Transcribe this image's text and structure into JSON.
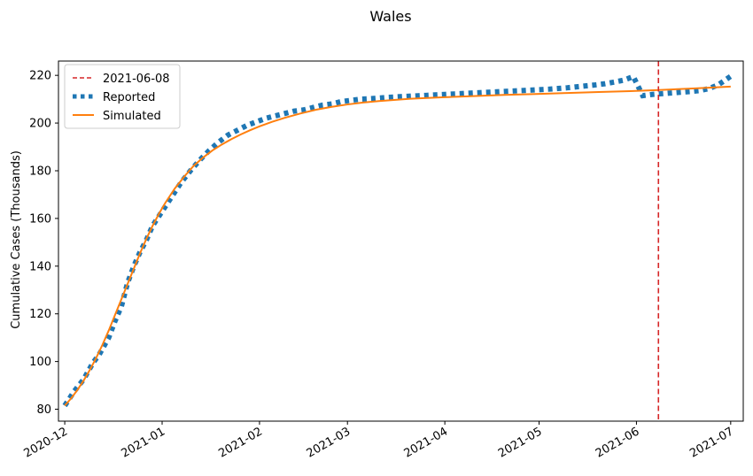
{
  "chart_data": {
    "type": "line",
    "title": "Wales",
    "xlabel": "",
    "ylabel": "Cumulative Cases (Thousands)",
    "ylim": [
      75,
      226
    ],
    "xlim_days": [
      -2,
      216
    ],
    "date_origin": "2020-12-01",
    "yticks": [
      80,
      100,
      120,
      140,
      160,
      180,
      200,
      220
    ],
    "xticks": [
      {
        "label": "2020-12",
        "day": 0
      },
      {
        "label": "2021-01",
        "day": 31
      },
      {
        "label": "2021-02",
        "day": 62
      },
      {
        "label": "2021-03",
        "day": 90
      },
      {
        "label": "2021-04",
        "day": 121
      },
      {
        "label": "2021-05",
        "day": 151
      },
      {
        "label": "2021-06",
        "day": 182
      },
      {
        "label": "2021-07",
        "day": 212
      }
    ],
    "vline": {
      "label": "2021-06-08",
      "day": 189,
      "color": "#d62728"
    },
    "series": [
      {
        "name": "Reported",
        "color": "#1f77b4",
        "style": "dotted",
        "x": [
          0,
          3,
          6,
          9,
          11,
          14,
          16,
          18,
          20,
          22,
          24,
          26,
          28,
          31,
          34,
          37,
          40,
          43,
          46,
          49,
          52,
          55,
          58,
          61,
          64,
          67,
          70,
          73,
          76,
          79,
          82,
          85,
          88,
          91,
          94,
          97,
          100,
          103,
          106,
          109,
          112,
          115,
          118,
          121,
          124,
          127,
          130,
          133,
          136,
          139,
          142,
          145,
          148,
          151,
          154,
          157,
          160,
          163,
          166,
          169,
          172,
          175,
          178,
          181,
          184,
          187,
          190,
          193,
          196,
          199,
          202,
          205,
          208,
          212
        ],
        "values": [
          81.5,
          87.5,
          92.5,
          99.5,
          103,
          110,
          117,
          123,
          133,
          140,
          146,
          151,
          157,
          163,
          169,
          175,
          180,
          184.5,
          188.5,
          192,
          195,
          197,
          199,
          200.5,
          202,
          203,
          204,
          205,
          205.5,
          206.5,
          207.5,
          208,
          209,
          209.5,
          210,
          210.2,
          210.5,
          210.8,
          211,
          211.2,
          211.4,
          211.6,
          211.8,
          212,
          212.2,
          212.4,
          212.6,
          212.8,
          213,
          213.2,
          213.4,
          213.6,
          213.8,
          214,
          214.2,
          214.5,
          214.8,
          215.2,
          215.6,
          216,
          216.5,
          217.2,
          218,
          219.5,
          211.5,
          212,
          212.3,
          212.6,
          212.9,
          213.2,
          213.6,
          214.4,
          216,
          219.6
        ]
      },
      {
        "name": "Simulated",
        "color": "#ff7f0e",
        "style": "solid",
        "x": [
          0,
          2,
          4,
          6,
          8,
          10,
          12,
          14,
          16,
          18,
          20,
          22,
          24,
          26,
          28,
          30,
          32,
          35,
          38,
          41,
          44,
          47,
          50,
          53,
          56,
          59,
          62,
          66,
          70,
          75,
          80,
          85,
          90,
          95,
          100,
          110,
          120,
          130,
          140,
          150,
          160,
          170,
          180,
          190,
          200,
          212
        ],
        "values": [
          81.5,
          84.5,
          88,
          92,
          96.5,
          101.5,
          107,
          113,
          119.5,
          126,
          132.5,
          139,
          145.5,
          151.5,
          157,
          162,
          166.5,
          172.5,
          177.5,
          182,
          185.5,
          188.5,
          191,
          193.2,
          195.2,
          197,
          198.6,
          200.5,
          202.2,
          204,
          205.6,
          206.8,
          207.8,
          208.6,
          209.2,
          210.2,
          210.8,
          211.3,
          211.8,
          212.2,
          212.6,
          213,
          213.4,
          213.9,
          214.5,
          215.3
        ]
      }
    ],
    "legend": {
      "placement": "top-left",
      "entries": [
        "2021-06-08",
        "Reported",
        "Simulated"
      ]
    }
  }
}
